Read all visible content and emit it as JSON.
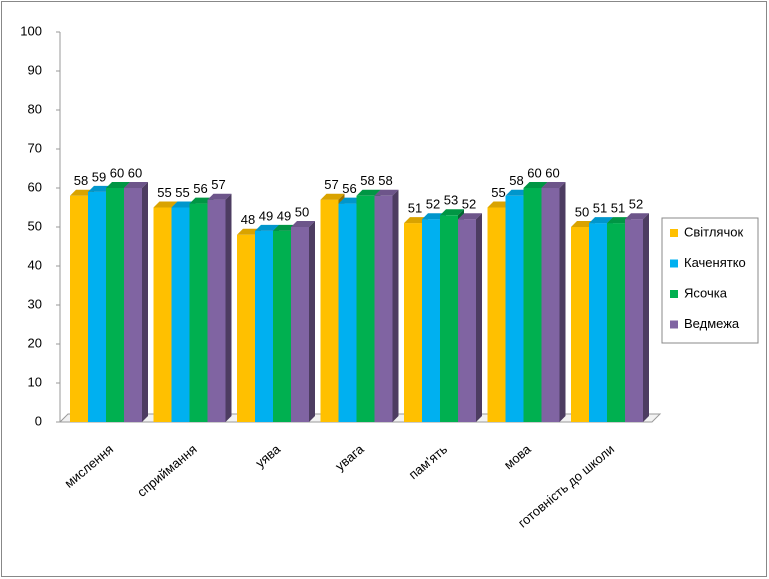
{
  "chart_data": {
    "type": "bar3d",
    "categories": [
      "мислення",
      "сприймання",
      "уява",
      "увага",
      "пам'ять",
      "мова",
      "готовність до школи"
    ],
    "series": [
      {
        "name": "Світлячок",
        "color": "#FFC000",
        "values": [
          58,
          55,
          48,
          57,
          51,
          55,
          50
        ]
      },
      {
        "name": "Каченятко",
        "color": "#00B0F0",
        "values": [
          59,
          55,
          49,
          56,
          52,
          58,
          51
        ]
      },
      {
        "name": "Ясочка",
        "color": "#00B050",
        "values": [
          60,
          56,
          49,
          58,
          53,
          60,
          51
        ]
      },
      {
        "name": "Ведмежа",
        "color": "#8064A2",
        "values": [
          60,
          57,
          50,
          58,
          52,
          60,
          52
        ]
      }
    ],
    "ylim": [
      0,
      100
    ],
    "yticks": [
      0,
      10,
      20,
      30,
      40,
      50,
      60,
      70,
      80,
      90,
      100
    ],
    "legend": "right",
    "data_labels": true
  }
}
